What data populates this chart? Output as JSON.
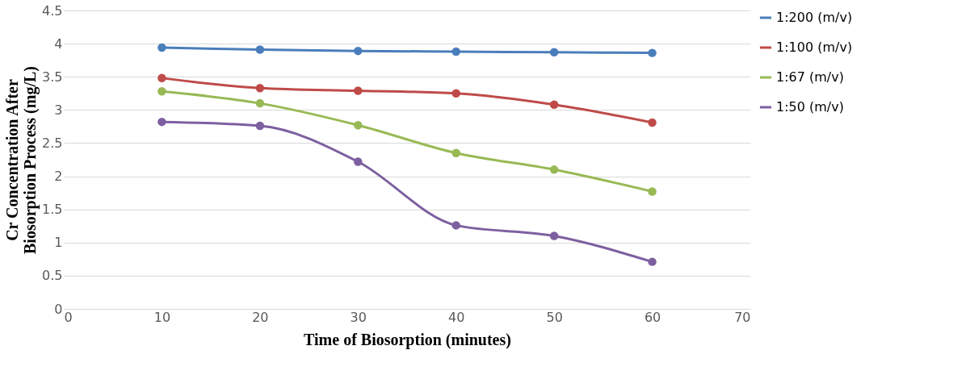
{
  "chart_data": {
    "type": "line",
    "xlabel": "Time of Biosorption (minutes)",
    "ylabel": "Cr Concentration After Biosorption Process (mg/L)",
    "x": [
      10,
      20,
      30,
      40,
      50,
      60
    ],
    "series": [
      {
        "name": "1:200 (m/v)",
        "color": "#4a7ebb",
        "values": [
          3.94,
          3.91,
          3.89,
          3.88,
          3.87,
          3.86
        ]
      },
      {
        "name": "1:100 (m/v)",
        "color": "#be4b48",
        "values": [
          3.48,
          3.33,
          3.29,
          3.25,
          3.08,
          2.81
        ]
      },
      {
        "name": "1:67 (m/v)",
        "color": "#98b954",
        "values": [
          3.28,
          3.1,
          2.77,
          2.35,
          2.1,
          1.77
        ]
      },
      {
        "name": "1:50 (m/v)",
        "color": "#7d60a0",
        "values": [
          2.82,
          2.76,
          2.22,
          1.26,
          1.1,
          0.71
        ]
      }
    ],
    "xlim": [
      0,
      70
    ],
    "xticks": [
      0,
      10,
      20,
      30,
      40,
      50,
      60,
      70
    ],
    "ylim": [
      0,
      4.5
    ],
    "yticks": [
      0,
      0.5,
      1,
      1.5,
      2,
      2.5,
      3,
      3.5,
      4,
      4.5
    ],
    "grid": "y",
    "legend": "right",
    "marker": "circle",
    "line_style": "solid"
  }
}
